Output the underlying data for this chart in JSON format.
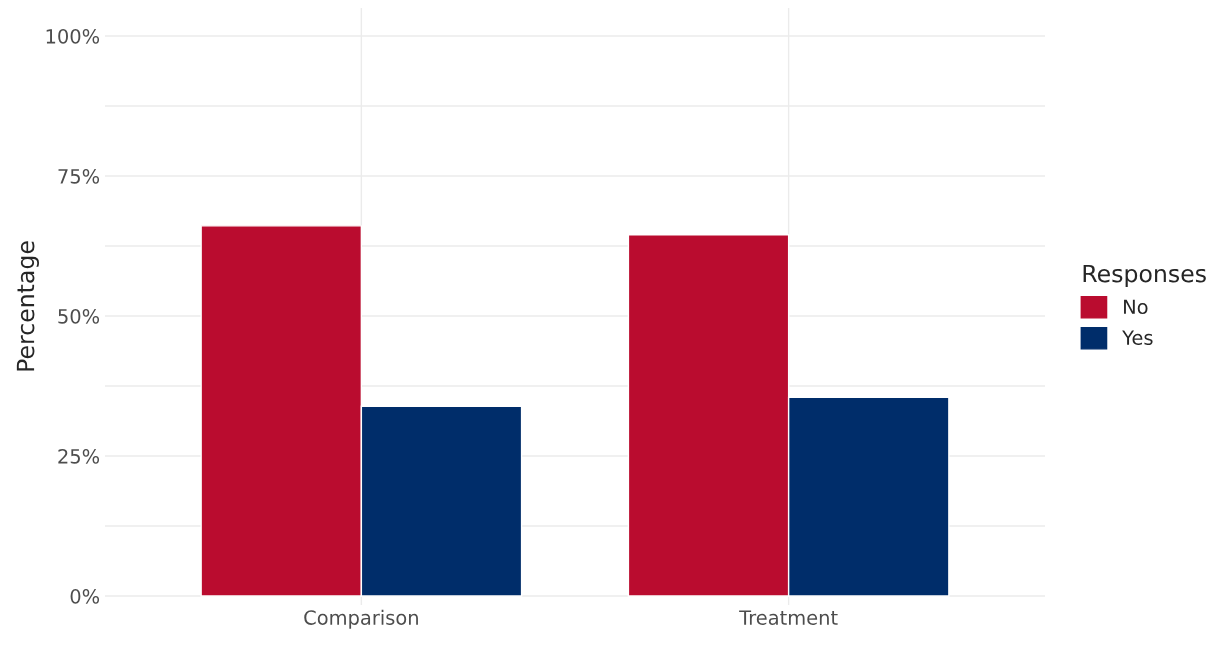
{
  "chart_data": {
    "type": "bar",
    "categories": [
      "Comparison",
      "Treatment"
    ],
    "ylabel": "Percentage",
    "legend_title": "Responses",
    "series": [
      {
        "name": "No",
        "color": "#ba0c2f",
        "values": [
          66.1,
          64.5
        ]
      },
      {
        "name": "Yes",
        "color": "#002d6a",
        "values": [
          33.9,
          35.5
        ]
      }
    ],
    "ylim": [
      -1.6,
      105
    ],
    "yticks": [
      {
        "value": 0,
        "label": "0%"
      },
      {
        "value": 12.5,
        "label": null
      },
      {
        "value": 25,
        "label": "25%"
      },
      {
        "value": 37.5,
        "label": null
      },
      {
        "value": 50,
        "label": "50%"
      },
      {
        "value": 62.5,
        "label": null
      },
      {
        "value": 75,
        "label": "75%"
      },
      {
        "value": 87.5,
        "label": null
      },
      {
        "value": 100,
        "label": "100%"
      }
    ],
    "grid": true,
    "legend": "right"
  }
}
